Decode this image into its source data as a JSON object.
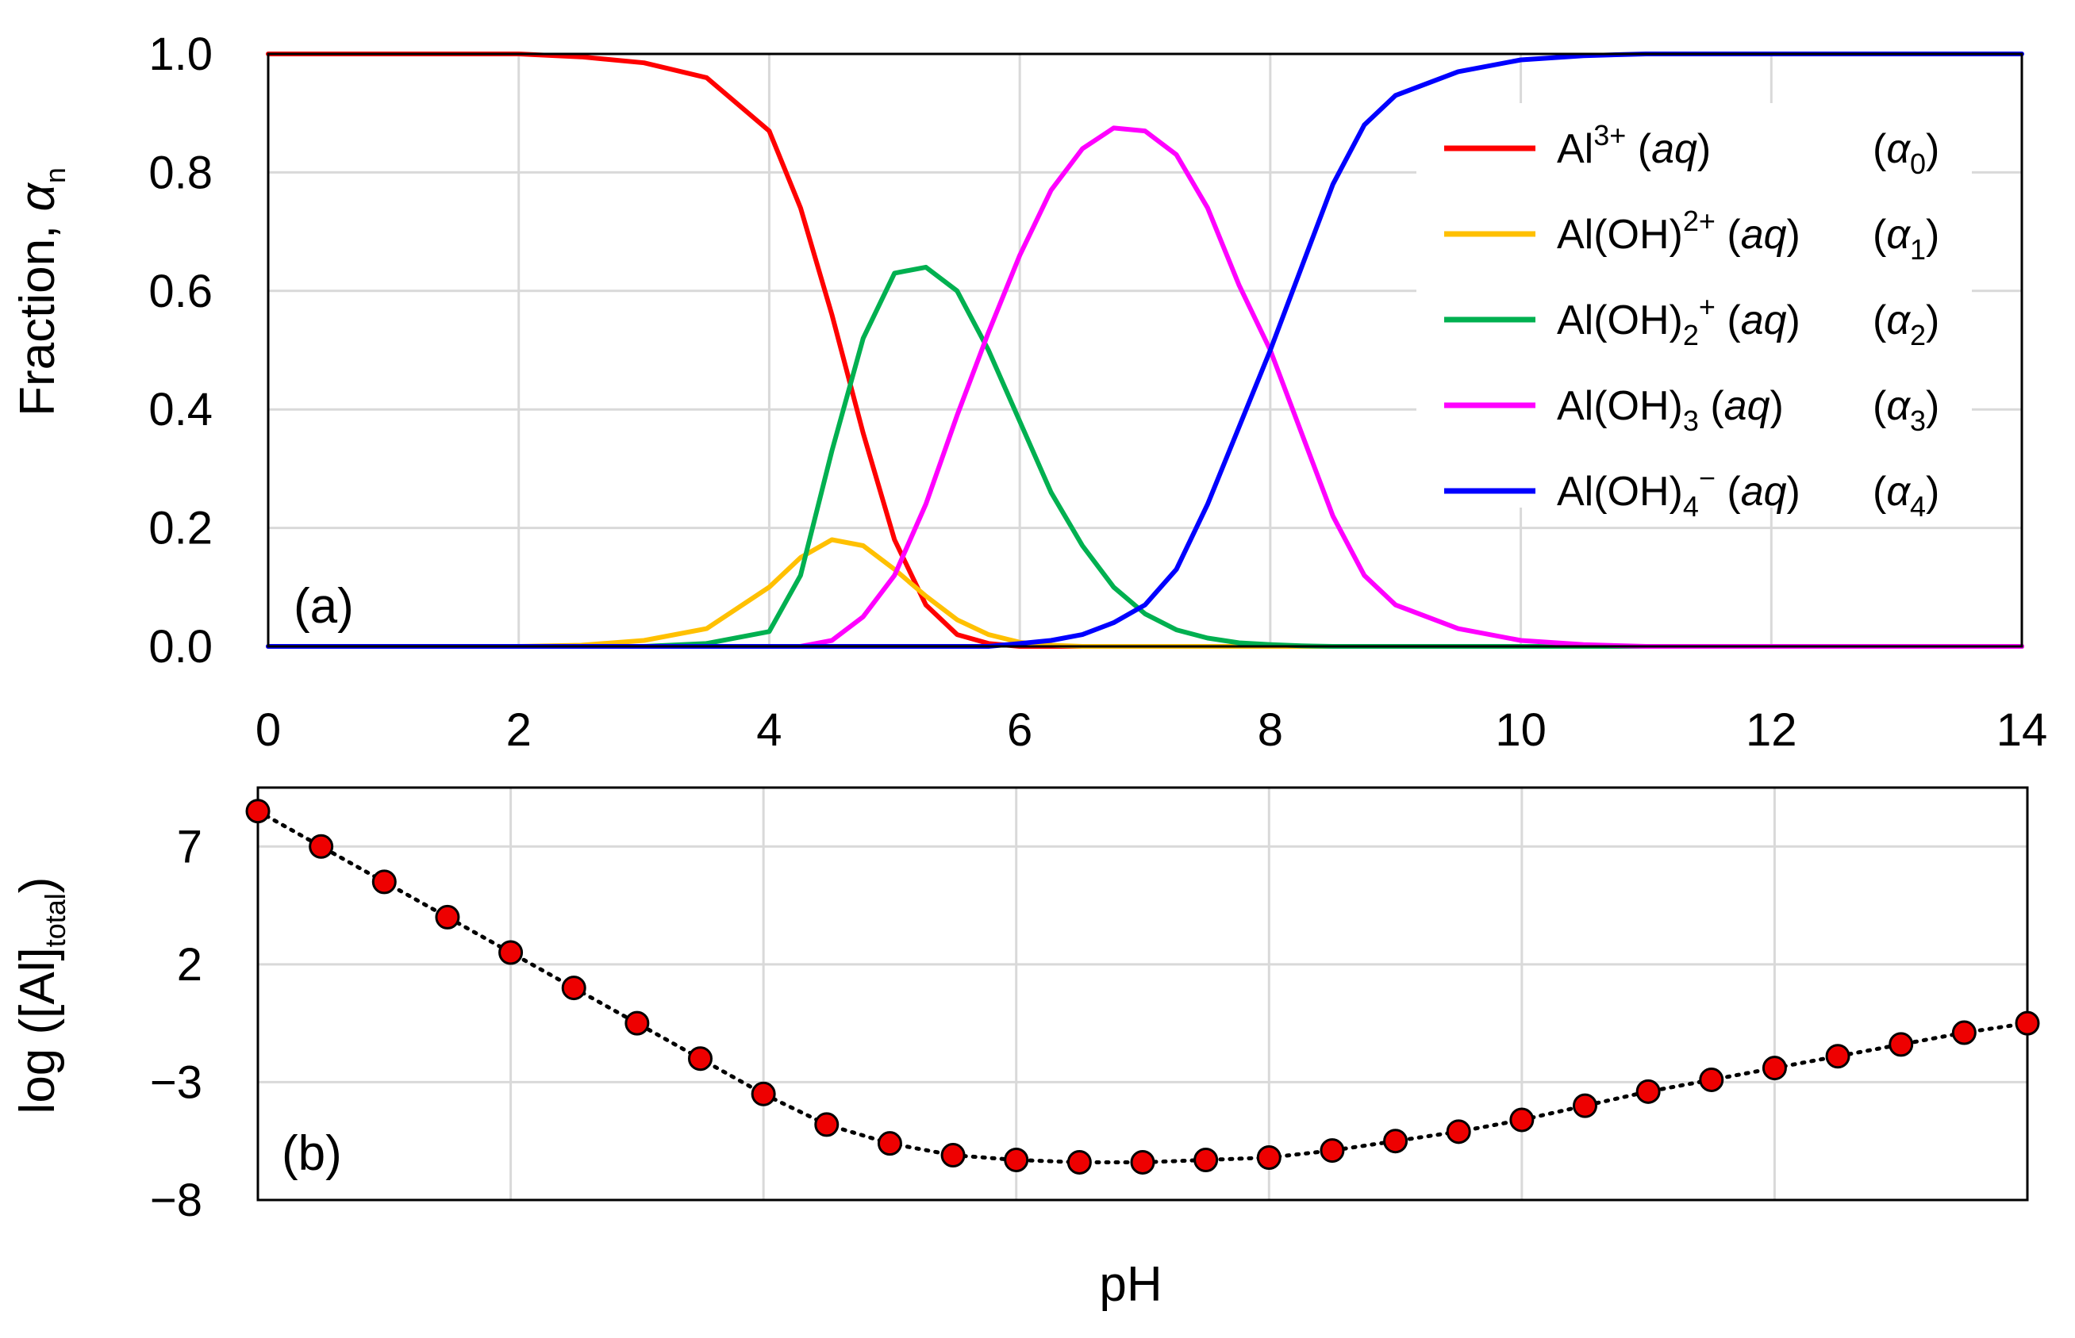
{
  "chart_data": [
    {
      "type": "line",
      "panel_label": "(a)",
      "xlabel": "pH",
      "ylabel": {
        "main": "Fraction, ",
        "symbol": "α",
        "sub": "n"
      },
      "xlim": [
        0,
        14
      ],
      "ylim": [
        0,
        1
      ],
      "x_ticks": [
        "0",
        "2",
        "4",
        "6",
        "8",
        "10",
        "12",
        "14"
      ],
      "y_ticks": [
        "0.0",
        "0.2",
        "0.4",
        "0.6",
        "0.8",
        "1.0"
      ],
      "grid": true,
      "legend_position": "top-right",
      "x": [
        0,
        0.5,
        1,
        1.5,
        2,
        2.5,
        3,
        3.5,
        4,
        4.25,
        4.5,
        4.75,
        5,
        5.25,
        5.5,
        5.75,
        6,
        6.25,
        6.5,
        6.75,
        7,
        7.25,
        7.5,
        7.75,
        8,
        8.25,
        8.5,
        8.75,
        9,
        9.5,
        10,
        10.5,
        11,
        12,
        13,
        14
      ],
      "series": [
        {
          "name": "Al3+ (aq)",
          "alpha": "α0",
          "color": "#ff0000",
          "values": [
            1,
            1,
            1,
            1,
            1,
            0.995,
            0.985,
            0.96,
            0.87,
            0.74,
            0.56,
            0.36,
            0.18,
            0.07,
            0.02,
            0.005,
            0,
            0,
            0,
            0,
            0,
            0,
            0,
            0,
            0,
            0,
            0,
            0,
            0,
            0,
            0,
            0,
            0,
            0,
            0,
            0
          ]
        },
        {
          "name": "Al(OH)2+ (aq)",
          "alpha": "α1",
          "color": "#ffc000",
          "values": [
            0,
            0,
            0,
            0,
            0,
            0.002,
            0.01,
            0.03,
            0.1,
            0.15,
            0.18,
            0.17,
            0.13,
            0.085,
            0.045,
            0.02,
            0.007,
            0.002,
            0,
            0,
            0,
            0,
            0,
            0,
            0,
            0,
            0,
            0,
            0,
            0,
            0,
            0,
            0,
            0,
            0,
            0
          ]
        },
        {
          "name": "Al(OH)2+ (aq)",
          "alpha": "α2",
          "color": "#00b050",
          "values": [
            0,
            0,
            0,
            0,
            0,
            0,
            0,
            0.005,
            0.025,
            0.12,
            0.33,
            0.52,
            0.63,
            0.64,
            0.6,
            0.5,
            0.38,
            0.26,
            0.17,
            0.1,
            0.055,
            0.028,
            0.014,
            0.006,
            0.003,
            0.001,
            0,
            0,
            0,
            0,
            0,
            0,
            0,
            0,
            0,
            0
          ]
        },
        {
          "name": "Al(OH)3 (aq)",
          "alpha": "α3",
          "color": "#ff00ff",
          "values": [
            0,
            0,
            0,
            0,
            0,
            0,
            0,
            0,
            0,
            0,
            0.01,
            0.05,
            0.12,
            0.24,
            0.39,
            0.53,
            0.66,
            0.77,
            0.84,
            0.875,
            0.87,
            0.83,
            0.74,
            0.61,
            0.5,
            0.36,
            0.22,
            0.12,
            0.07,
            0.03,
            0.01,
            0.003,
            0,
            0,
            0,
            0
          ]
        },
        {
          "name": "Al(OH)4− (aq)",
          "alpha": "α4",
          "color": "#0000ff",
          "values": [
            0,
            0,
            0,
            0,
            0,
            0,
            0,
            0,
            0,
            0,
            0,
            0,
            0,
            0,
            0,
            0,
            0.005,
            0.01,
            0.02,
            0.04,
            0.07,
            0.13,
            0.24,
            0.37,
            0.5,
            0.64,
            0.78,
            0.88,
            0.93,
            0.97,
            0.99,
            0.997,
            1,
            1,
            1,
            1
          ]
        }
      ],
      "legend": [
        {
          "base": "Al",
          "sup": "3+",
          "sub": "",
          "supAfterSub": "",
          "medium": "aq",
          "alpha_sub": "0",
          "color": "#ff0000"
        },
        {
          "base": "Al(OH)",
          "sup": "2+",
          "sub": "",
          "supAfterSub": "",
          "medium": "aq",
          "alpha_sub": "1",
          "color": "#ffc000"
        },
        {
          "base": "Al(OH)",
          "sup": "",
          "sub": "2",
          "supAfterSub": "+",
          "medium": "aq",
          "alpha_sub": "2",
          "color": "#00b050"
        },
        {
          "base": "Al(OH)",
          "sup": "",
          "sub": "3",
          "supAfterSub": "",
          "medium": "aq",
          "alpha_sub": "3",
          "color": "#ff00ff"
        },
        {
          "base": "Al(OH)",
          "sup": "",
          "sub": "4",
          "supAfterSub": "−",
          "medium": "aq",
          "alpha_sub": "4",
          "color": "#0000ff"
        }
      ]
    },
    {
      "type": "scatter",
      "panel_label": "(b)",
      "xlabel": "pH",
      "ylabel": {
        "main": "log ([Al]",
        "sub": "total",
        "after": ")"
      },
      "xlim": [
        0,
        14
      ],
      "ylim": [
        -8,
        9.5
      ],
      "y_ticks": [
        {
          "value": 7,
          "label": "7"
        },
        {
          "value": 2,
          "label": "2"
        },
        {
          "value": -3,
          "label": "−3"
        },
        {
          "value": -8,
          "label": "−8"
        }
      ],
      "grid": true,
      "line_style": "dotted",
      "marker_color": "#ee0000",
      "x": [
        0,
        0.5,
        1,
        1.5,
        2,
        2.5,
        3,
        3.5,
        4,
        4.5,
        5,
        5.5,
        6,
        6.5,
        7,
        7.5,
        8,
        8.5,
        9,
        9.5,
        10,
        10.5,
        11,
        11.5,
        12,
        12.5,
        13,
        13.5,
        14
      ],
      "values": [
        8.5,
        7.0,
        5.5,
        4.0,
        2.5,
        1.0,
        -0.5,
        -2.0,
        -3.5,
        -4.8,
        -5.6,
        -6.1,
        -6.3,
        -6.4,
        -6.4,
        -6.3,
        -6.2,
        -5.9,
        -5.5,
        -5.1,
        -4.6,
        -4.0,
        -3.4,
        -2.9,
        -2.4,
        -1.9,
        -1.4,
        -0.9,
        -0.5
      ]
    }
  ]
}
